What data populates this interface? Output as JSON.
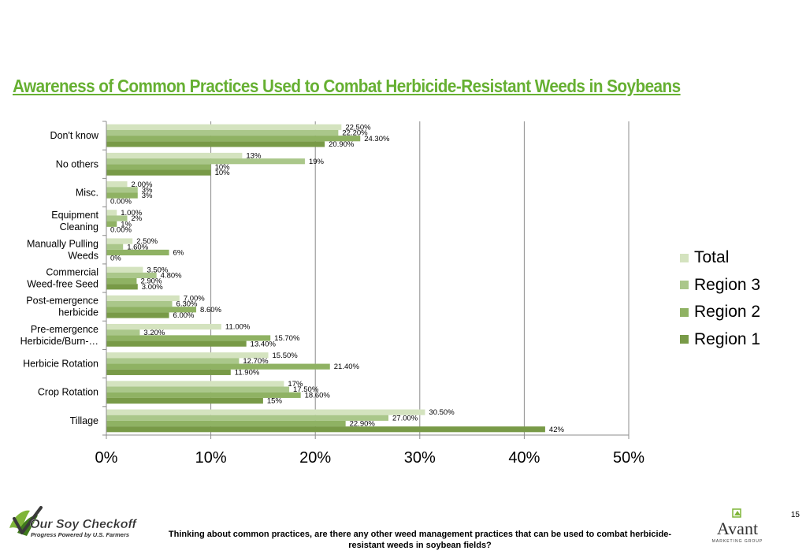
{
  "title": "Awareness of Common Practices Used to Combat Herbicide-Resistant Weeds in Soybeans",
  "footer": {
    "question": "Thinking about common practices, are there any other weed management practices that can be used to combat herbicide-resistant weeds in soybean fields?",
    "page_number": "15"
  },
  "logos": {
    "left_main": "Our Soy Checkoff",
    "left_tagline": "Progress Powered by U.S. Farmers",
    "right_main": "Avant",
    "right_sub": "MARKETING GROUP"
  },
  "colors": {
    "Total": "#d4e3bf",
    "Region 3": "#aac78a",
    "Region 2": "#8fb263",
    "Region 1": "#789a47",
    "title": "#66b032"
  },
  "chart_data": {
    "type": "bar",
    "orientation": "horizontal",
    "categories": [
      "Don't know",
      "No others",
      "Misc.",
      "Equipment Cleaning",
      "Manually Pulling Weeds",
      "Commercial Weed-free Seed",
      "Post-emergence herbicide",
      "Pre-emergence Herbicide/Burn-…",
      "Herbicie Rotation",
      "Crop Rotation",
      "Tillage"
    ],
    "category_lines": [
      [
        "Don't know"
      ],
      [
        "No others"
      ],
      [
        "Misc."
      ],
      [
        "Equipment",
        "Cleaning"
      ],
      [
        "Manually Pulling",
        "Weeds"
      ],
      [
        "Commercial",
        "Weed-free Seed"
      ],
      [
        "Post-emergence",
        "herbicide"
      ],
      [
        "Pre-emergence",
        "Herbicide/Burn-…"
      ],
      [
        "Herbicie Rotation"
      ],
      [
        "Crop Rotation"
      ],
      [
        "Tillage"
      ]
    ],
    "series": [
      {
        "name": "Total",
        "values": [
          22.5,
          13,
          2.0,
          1.0,
          2.5,
          3.5,
          7.0,
          11.0,
          15.5,
          17,
          30.5
        ],
        "labels": [
          "22.50%",
          "13%",
          "2.00%",
          "1.00%",
          "2.50%",
          "3.50%",
          "7.00%",
          "11.00%",
          "15.50%",
          "17%",
          "30.50%"
        ]
      },
      {
        "name": "Region 3",
        "values": [
          22.2,
          19,
          3,
          2,
          1.6,
          4.8,
          6.3,
          3.2,
          12.7,
          17.5,
          27.0
        ],
        "labels": [
          "22.20%",
          "19%",
          "3%",
          "2%",
          "1.60%",
          "4.80%",
          "6.30%",
          "3.20%",
          "12.70%",
          "17.50%",
          "27.00%"
        ]
      },
      {
        "name": "Region 2",
        "values": [
          24.3,
          10,
          3,
          1,
          6,
          2.9,
          8.6,
          15.7,
          21.4,
          18.6,
          22.9
        ],
        "labels": [
          "24.30%",
          "10%",
          "3%",
          "1%",
          "6%",
          "2.90%",
          "8.60%",
          "15.70%",
          "21.40%",
          "18.60%",
          "22.90%"
        ]
      },
      {
        "name": "Region 1",
        "values": [
          20.9,
          10,
          0.0,
          0.0,
          0,
          3.0,
          6.0,
          13.4,
          11.9,
          15,
          42
        ],
        "labels": [
          "20.90%",
          "10%",
          "0.00%",
          "0.00%",
          "0%",
          "3.00%",
          "6.00%",
          "13.40%",
          "11.90%",
          "15%",
          "42%"
        ]
      }
    ],
    "xlim": [
      0,
      50
    ],
    "xticks": [
      "0%",
      "10%",
      "20%",
      "30%",
      "40%",
      "50%"
    ],
    "grid": true,
    "legend_position": "right"
  }
}
